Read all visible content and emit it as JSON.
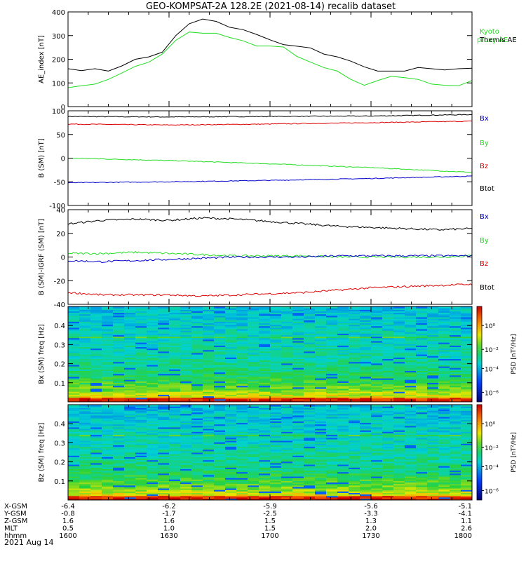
{
  "title": "GEO-KOMPSAT-2A 128.2E (2021-08-14) recalib dataset",
  "colors": {
    "black": "#000000",
    "blue": "#0000cc",
    "green": "#22dd22",
    "red": "#dd0000"
  },
  "chart_data": [
    {
      "type": "line",
      "ylabel": "AE_index [nT]",
      "ylim": [
        0,
        400
      ],
      "yticks": [
        0,
        100,
        200,
        300,
        400
      ],
      "x_minutes": [
        0,
        4,
        8,
        12,
        16,
        20,
        24,
        28,
        32,
        36,
        40,
        44,
        48,
        52,
        56,
        60,
        64,
        68,
        72,
        76,
        80,
        84,
        88,
        92,
        96,
        100,
        104,
        108,
        112,
        116,
        120
      ],
      "legend": [
        {
          "label": "Kyoto proxy AE",
          "color": "#22dd22"
        },
        {
          "label": "Themis AE",
          "color": "#000000"
        }
      ],
      "series": [
        {
          "name": "Themis AE",
          "color": "#000000",
          "values": [
            160,
            152,
            160,
            150,
            172,
            200,
            210,
            230,
            300,
            350,
            370,
            360,
            335,
            325,
            305,
            282,
            262,
            255,
            248,
            222,
            210,
            192,
            168,
            150,
            150,
            150,
            165,
            160,
            155,
            160,
            162
          ]
        },
        {
          "name": "Kyoto proxy AE",
          "color": "#22dd22",
          "values": [
            80,
            88,
            95,
            115,
            142,
            170,
            188,
            222,
            280,
            315,
            310,
            310,
            292,
            278,
            256,
            256,
            252,
            212,
            188,
            165,
            150,
            115,
            90,
            110,
            128,
            122,
            115,
            95,
            90,
            88,
            110
          ]
        }
      ]
    },
    {
      "type": "line",
      "ylabel": "B (SM) [nT]",
      "ylim": [
        -100,
        100
      ],
      "yticks": [
        -100,
        -50,
        0,
        50,
        100
      ],
      "x_minutes": [
        0,
        30,
        60,
        90,
        120
      ],
      "legend": [
        {
          "label": "Bx",
          "color": "#0000cc"
        },
        {
          "label": "By",
          "color": "#22dd22"
        },
        {
          "label": "Bz",
          "color": "#dd0000"
        },
        {
          "label": "Btot",
          "color": "#000000"
        }
      ],
      "series": [
        {
          "name": "Btot",
          "color": "#000000",
          "values": [
            88,
            87,
            88,
            89,
            92
          ]
        },
        {
          "name": "Bz",
          "color": "#dd0000",
          "values": [
            72,
            70,
            72,
            75,
            78
          ]
        },
        {
          "name": "By",
          "color": "#22dd22",
          "values": [
            0,
            -5,
            -12,
            -20,
            -30
          ]
        },
        {
          "name": "Bx",
          "color": "#0000cc",
          "values": [
            -52,
            -50,
            -47,
            -43,
            -38
          ]
        }
      ]
    },
    {
      "type": "line",
      "ylabel": "B (SM)-IGRF (SM) [nT]",
      "ylim": [
        -40,
        40
      ],
      "yticks": [
        -40,
        -20,
        0,
        20,
        40
      ],
      "x_minutes": [
        0,
        10,
        20,
        30,
        40,
        50,
        60,
        70,
        80,
        90,
        100,
        110,
        120
      ],
      "legend": [
        {
          "label": "Bx",
          "color": "#0000cc"
        },
        {
          "label": "By",
          "color": "#22dd22"
        },
        {
          "label": "Bz",
          "color": "#dd0000"
        },
        {
          "label": "Btot",
          "color": "#000000"
        }
      ],
      "series": [
        {
          "name": "Btot",
          "color": "#000000",
          "values": [
            28,
            31,
            32,
            31,
            33,
            32,
            30,
            28,
            26,
            25,
            24,
            23,
            24
          ]
        },
        {
          "name": "By",
          "color": "#22dd22",
          "values": [
            3,
            3,
            4,
            3,
            2,
            1,
            1,
            1,
            0,
            0,
            0,
            0,
            1
          ]
        },
        {
          "name": "Bx",
          "color": "#0000cc",
          "values": [
            -3,
            -4,
            -3,
            -2,
            -1,
            0,
            0,
            0,
            1,
            1,
            1,
            1,
            1
          ]
        },
        {
          "name": "Bz",
          "color": "#dd0000",
          "values": [
            -30,
            -32,
            -32,
            -32,
            -33,
            -32,
            -31,
            -30,
            -28,
            -26,
            -25,
            -24,
            -23
          ]
        }
      ]
    },
    {
      "type": "heatmap",
      "ylabel": "Bx (SM) freq [Hz]",
      "ylim": [
        0,
        0.5
      ],
      "yticks": [
        0.1,
        0.2,
        0.3,
        0.4
      ],
      "colorbar": {
        "label": "PSD [nT²/Hz]",
        "ticks": [
          "10⁰",
          "10⁻²",
          "10⁻⁴",
          "10⁻⁶"
        ]
      }
    },
    {
      "type": "heatmap",
      "ylabel": "Bz (SM) freq [Hz]",
      "ylim": [
        0,
        0.5
      ],
      "yticks": [
        0.1,
        0.2,
        0.3,
        0.4
      ],
      "colorbar": {
        "label": "PSD [nT²/Hz]",
        "ticks": [
          "10⁰",
          "10⁻²",
          "10⁻⁴",
          "10⁻⁶"
        ]
      }
    }
  ],
  "ephemeris": {
    "rows": [
      {
        "label": "X-GSM",
        "values": [
          "-6.4",
          "-6.2",
          "-5.9",
          "-5.6",
          "-5.1"
        ]
      },
      {
        "label": "Y-GSM",
        "values": [
          "-0.8",
          "-1.7",
          "-2.5",
          "-3.3",
          "-4.1"
        ]
      },
      {
        "label": "Z-GSM",
        "values": [
          "1.6",
          "1.6",
          "1.5",
          "1.3",
          "1.1"
        ]
      },
      {
        "label": "MLT",
        "values": [
          "0.5",
          "1.0",
          "1.5",
          "2.0",
          "2.6"
        ]
      },
      {
        "label": "hhmm",
        "values": [
          "1600",
          "1630",
          "1700",
          "1730",
          "1800"
        ]
      }
    ],
    "date": "2021 Aug 14"
  }
}
